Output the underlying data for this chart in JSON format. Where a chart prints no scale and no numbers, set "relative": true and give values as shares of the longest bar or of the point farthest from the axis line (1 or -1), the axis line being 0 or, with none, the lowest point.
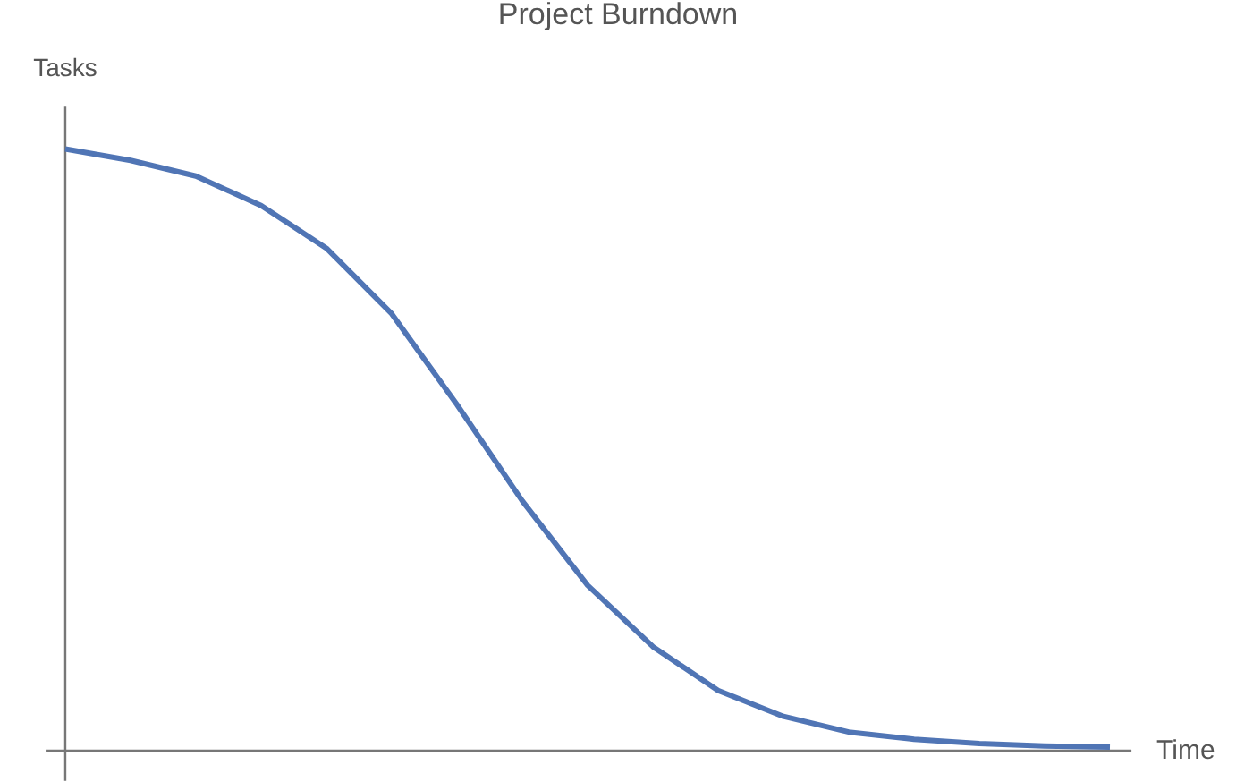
{
  "chart_data": {
    "type": "line",
    "title": "Project Burndown",
    "xlabel": "Time",
    "ylabel": "Tasks",
    "relative": true,
    "categories": [
      null,
      null,
      null,
      null,
      null,
      null,
      null,
      null,
      null,
      null,
      null,
      null,
      null,
      null,
      null,
      null,
      null
    ],
    "series": [
      {
        "color": "#5075b5",
        "values": [
          1.0,
          0.981,
          0.955,
          0.906,
          0.835,
          0.726,
          0.575,
          0.415,
          0.275,
          0.173,
          0.1,
          0.057,
          0.031,
          0.019,
          0.012,
          0.008,
          0.006
        ]
      }
    ]
  }
}
